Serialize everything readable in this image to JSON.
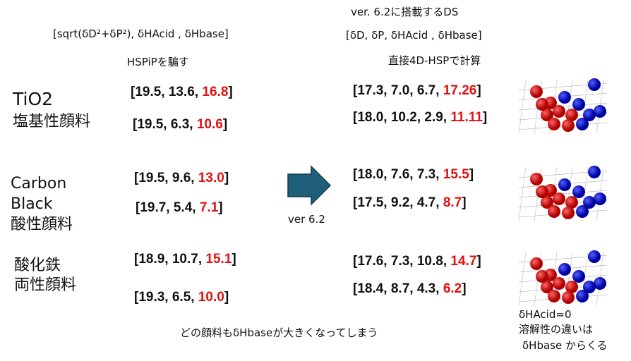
{
  "header": {
    "version_title": "ver. 6.2に搭載するDS",
    "left_params": "[sqrt(δD²+δP²), δHAcid , δHbase]",
    "right_params": "[δD, δP, δHAcid , δHbase]",
    "left_caption": "HSPiPを騙す",
    "right_caption": "直接4D-HSPで計算"
  },
  "pigments": [
    {
      "name_lines": [
        "TiO2",
        "塩基性顔料"
      ],
      "left": [
        {
          "prefix": "[19.5, 13.6, ",
          "highlight": "16.8",
          "suffix": "]"
        },
        {
          "prefix": "[19.5, 6.3, ",
          "highlight": "10.6",
          "suffix": "]"
        }
      ],
      "right": [
        {
          "prefix": "[17.3, 7.0, 6.7, ",
          "highlight": "17.26",
          "suffix": "]"
        },
        {
          "prefix": "[18.0, 10.2, 2.9, ",
          "highlight": "11.11",
          "suffix": "]"
        }
      ]
    },
    {
      "name_lines": [
        "Carbon",
        "Black",
        "酸性顔料"
      ],
      "left": [
        {
          "prefix": "[19.5, 9.6, ",
          "highlight": "13.0",
          "suffix": "]"
        },
        {
          "prefix": "[19.7, 5.4, ",
          "highlight": "7.1",
          "suffix": "]"
        }
      ],
      "right": [
        {
          "prefix": "[18.0, 7.6, 7.3, ",
          "highlight": "15.5",
          "suffix": "]"
        },
        {
          "prefix": "[17.5, 9.2, 4.7, ",
          "highlight": "8.7",
          "suffix": "]"
        }
      ]
    },
    {
      "name_lines": [
        "酸化鉄",
        "両性顔料"
      ],
      "left": [
        {
          "prefix": "[18.9, 10.7, ",
          "highlight": "15.1",
          "suffix": "]"
        },
        {
          "prefix": "[19.3, 6.5, ",
          "highlight": "10.0",
          "suffix": "]"
        }
      ],
      "right": [
        {
          "prefix": "[17.6, 7.3, 10.8, ",
          "highlight": "14.7",
          "suffix": "]"
        },
        {
          "prefix": "[18.4, 8.7, 4.3, ",
          "highlight": "6.2",
          "suffix": "]"
        }
      ]
    }
  ],
  "arrow_label": "ver 6.2",
  "footer": "どの顔料もδHbaseが大きくなってしまう",
  "note_lines": [
    "δHAcid=0",
    "溶解性の違いは",
    "δHbase からくる"
  ]
}
